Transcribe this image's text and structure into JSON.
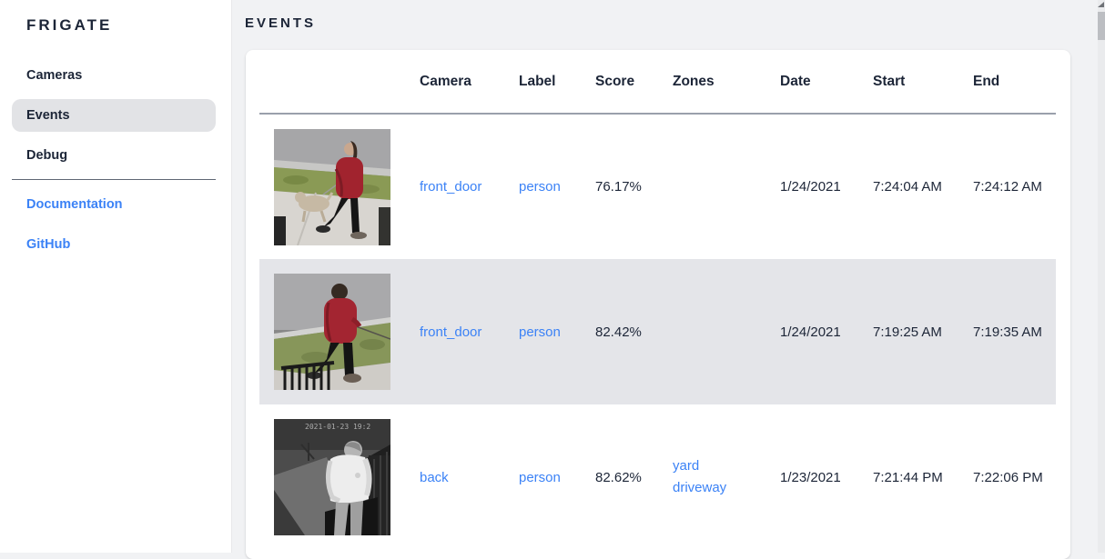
{
  "sidebar": {
    "title": "FRIGATE",
    "items": [
      {
        "label": "Cameras",
        "active": false
      },
      {
        "label": "Events",
        "active": true
      },
      {
        "label": "Debug",
        "active": false
      }
    ],
    "links": [
      {
        "label": "Documentation"
      },
      {
        "label": "GitHub"
      }
    ]
  },
  "page": {
    "title": "EVENTS"
  },
  "table": {
    "columns": {
      "camera": "Camera",
      "label": "Label",
      "score": "Score",
      "zones": "Zones",
      "date": "Date",
      "start": "Start",
      "end": "End"
    },
    "rows": [
      {
        "thumbnail": "thumb-person-red-coat-dog",
        "thumbnail_alt": "person in red coat walking dog on sidewalk",
        "camera": "front_door",
        "label": "person",
        "score": "76.17%",
        "zones": [],
        "date": "1/24/2021",
        "start": "7:24:04 AM",
        "end": "7:24:12 AM",
        "selected": false
      },
      {
        "thumbnail": "thumb-person-red-hoodie-dog",
        "thumbnail_alt": "person in red hoodie walking dog on leash",
        "camera": "front_door",
        "label": "person",
        "score": "82.42%",
        "zones": [],
        "date": "1/24/2021",
        "start": "7:19:25 AM",
        "end": "7:19:35 AM",
        "selected": true
      },
      {
        "thumbnail": "thumb-person-white-shirt-night",
        "thumbnail_alt": "infrared night image of person in white shirt",
        "camera": "back",
        "label": "person",
        "score": "82.62%",
        "zones": [
          "yard",
          "driveway"
        ],
        "date": "1/23/2021",
        "start": "7:21:44 PM",
        "end": "7:22:06 PM",
        "selected": false
      }
    ]
  },
  "colors": {
    "link_blue": "#3b82f6",
    "text_dark": "#1c2537",
    "row_highlight": "#e4e5e9",
    "nav_highlight": "#e2e3e6",
    "page_background": "#f1f2f4"
  }
}
